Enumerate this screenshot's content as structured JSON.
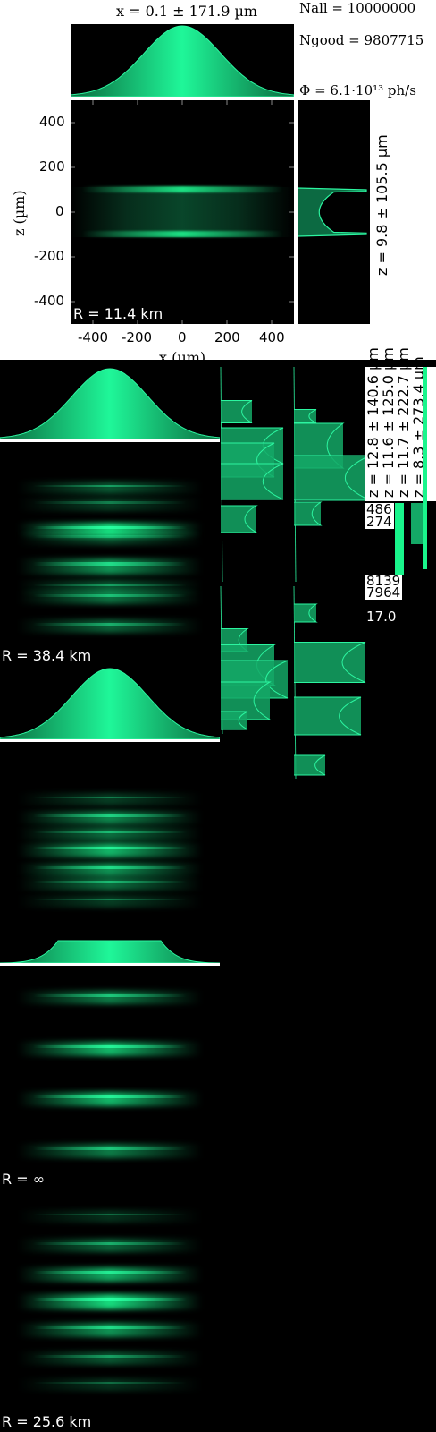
{
  "colors": {
    "beam": "#19f58c",
    "background": "#000000",
    "frame": "#ffffff"
  },
  "header": {
    "title": "x = 0.1 ± 171.9 µm",
    "n_all": "Nall = 10000000",
    "n_good": "Ngood = 9807715",
    "flux": "Φ = 6.1·10¹³ ph/s"
  },
  "main_plot": {
    "radius_label": "R = 11.4 km",
    "xlabel": "x (µm)",
    "ylabel": "z (µm)",
    "x_ticks": [
      "-400",
      "-200",
      "0",
      "200",
      "400"
    ],
    "y_ticks": [
      "400",
      "200",
      "0",
      "-200",
      "-400"
    ],
    "side_label": "z = 9.8 ± 105.5 µm"
  },
  "stacked_panels": [
    {
      "radius_label": "R = 38.4 km"
    },
    {
      "radius_label": "R = ∞"
    },
    {
      "radius_label": "R = 25.6 km"
    }
  ],
  "rotated_labels": [
    "z = 12.8 ± 140.6 µm",
    "z = 11.6 ± 125.0 µm",
    "z = 11.7 ± 222.7 µm",
    "z = 8.3 ± 273.4 µm"
  ],
  "partial_labels": [
    "486",
    "274",
    "8139",
    "7964",
    "17.0"
  ],
  "chart_data": {
    "type": "heatmap",
    "title": "x = 0.1 ± 171.9 µm",
    "xlabel": "x (µm)",
    "ylabel": "z (µm)",
    "xlim": [
      -500,
      500
    ],
    "ylim": [
      -500,
      500
    ],
    "x_ticks": [
      -400,
      -200,
      0,
      200,
      400
    ],
    "y_ticks": [
      -400,
      -200,
      0,
      200,
      400
    ],
    "x_profile": {
      "shape": "gaussian",
      "mean": 0.1,
      "std": 171.9
    },
    "z_profile": {
      "mean": 9.8,
      "std": 105.5,
      "edge_peaks": [
        -100,
        100
      ]
    },
    "n_all": 10000000,
    "n_good": 9807715,
    "flux_ph_per_s": 61000000000000.0,
    "radius_km": 11.4
  }
}
